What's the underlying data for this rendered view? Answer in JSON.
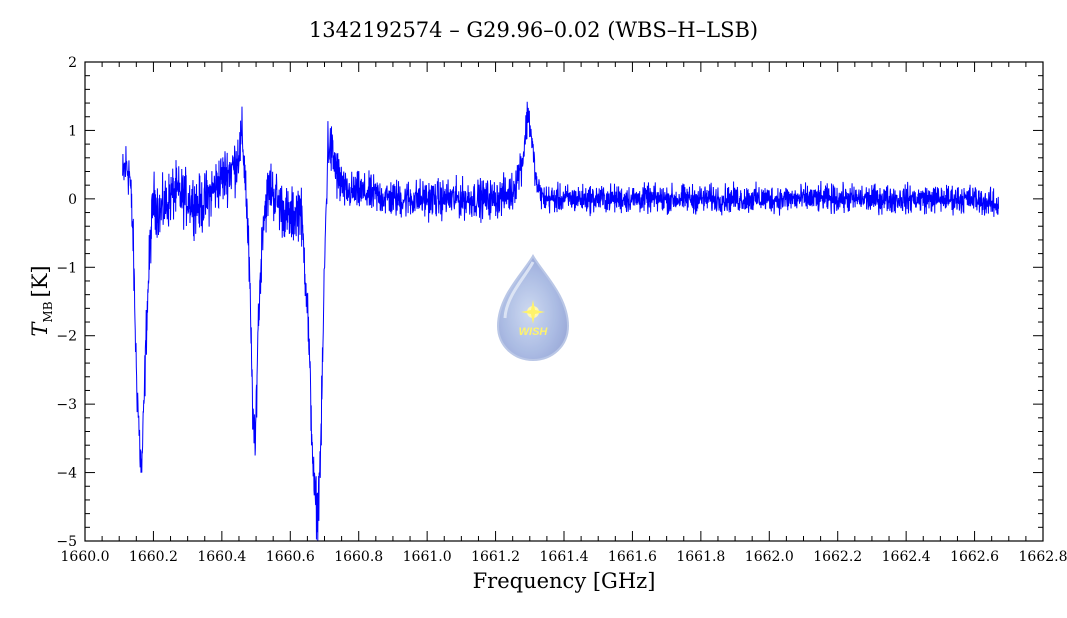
{
  "chart_data": {
    "type": "line",
    "title": "1342192574 – G29.96–0.02 (WBS–H–LSB)",
    "xlabel": "Frequency [GHz]",
    "ylabel_main": "T",
    "ylabel_sub": "MB",
    "ylabel_unit": "[K]",
    "xlim": [
      1660.0,
      1662.8
    ],
    "ylim": [
      -5,
      2
    ],
    "xticks": [
      1660.0,
      1660.2,
      1660.4,
      1660.6,
      1660.8,
      1661.0,
      1661.2,
      1661.4,
      1661.6,
      1661.8,
      1662.0,
      1662.2,
      1662.4,
      1662.6,
      1662.8
    ],
    "xtick_labels": [
      "1660.0",
      "1660.2",
      "1660.4",
      "1660.6",
      "1660.8",
      "1661.0",
      "1661.2",
      "1661.4",
      "1661.6",
      "1661.8",
      "1662.0",
      "1662.2",
      "1662.4",
      "1662.6",
      "1662.8"
    ],
    "yticks": [
      -5,
      -4,
      -3,
      -2,
      -1,
      0,
      1,
      2
    ],
    "ytick_labels": [
      "−5",
      "−4",
      "−3",
      "−2",
      "−1",
      "0",
      "1",
      "2"
    ],
    "grid": false,
    "series_color": "#0000ff",
    "series": [
      {
        "x": [
          1660.11,
          1660.12,
          1660.13,
          1660.14,
          1660.15,
          1660.16,
          1660.165,
          1660.17,
          1660.18,
          1660.19,
          1660.2,
          1660.22,
          1660.26,
          1660.3,
          1660.34,
          1660.37,
          1660.4,
          1660.42,
          1660.44,
          1660.46,
          1660.47,
          1660.48,
          1660.49,
          1660.497,
          1660.505,
          1660.52,
          1660.54,
          1660.57,
          1660.6,
          1660.63,
          1660.65,
          1660.66,
          1660.67,
          1660.68,
          1660.69,
          1660.7,
          1660.71,
          1660.72,
          1660.74,
          1660.76,
          1660.8,
          1660.9,
          1661.0,
          1661.1,
          1661.2,
          1661.25,
          1661.28,
          1661.295,
          1661.305,
          1661.32,
          1661.34,
          1661.4,
          1661.6,
          1661.8,
          1662.0,
          1662.2,
          1662.4,
          1662.6,
          1662.67
        ],
        "values": [
          0.3,
          0.5,
          0.4,
          -0.5,
          -2.5,
          -3.6,
          -4.0,
          -3.4,
          -1.8,
          -0.7,
          0.0,
          -0.2,
          0.1,
          0.0,
          -0.1,
          0.1,
          0.3,
          0.4,
          0.5,
          0.9,
          0.2,
          -1.0,
          -3.0,
          -3.8,
          -2.0,
          -0.3,
          0.2,
          -0.1,
          -0.3,
          -0.1,
          -1.5,
          -3.0,
          -4.3,
          -4.6,
          -3.5,
          -1.0,
          0.8,
          0.7,
          0.3,
          0.1,
          0.1,
          0.0,
          0.0,
          0.0,
          0.0,
          0.1,
          0.6,
          1.3,
          0.9,
          0.2,
          0.0,
          0.0,
          0.0,
          0.0,
          0.0,
          0.0,
          0.0,
          0.0,
          -0.1
        ]
      }
    ]
  },
  "logo": {
    "text": "WISH",
    "icon": "wish-drop-logo"
  }
}
